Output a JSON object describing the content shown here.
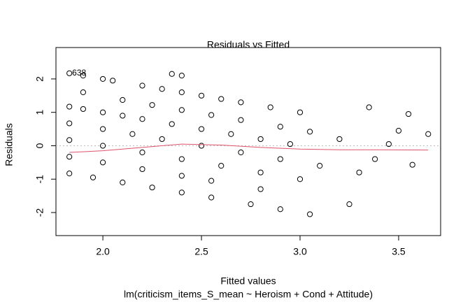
{
  "chart_data": {
    "type": "scatter",
    "title": "Residuals vs Fitted",
    "xlabel": "Fitted values",
    "subtitle": "lm(criticism_items_S_mean ~ Heroism + Cond + Attitude)",
    "ylabel": "Residuals",
    "annotation": "638",
    "xlim": [
      1.762,
      3.713
    ],
    "ylim": [
      -2.69,
      2.94
    ],
    "xticks": [
      {
        "value": 2.0,
        "label": "2.0"
      },
      2.5,
      {
        "value": 3.0,
        "label": "3.0"
      },
      3.5
    ],
    "yticks": [
      -2,
      -1,
      0,
      1,
      2
    ],
    "reference_line": 0,
    "point_color": "#000000",
    "x": [
      1.83,
      1.9,
      2.0,
      2.05,
      2.2,
      2.3,
      2.4,
      2.5,
      2.6,
      2.7,
      2.85,
      1.83,
      1.9,
      2.0,
      2.1,
      2.2,
      2.35,
      2.5,
      2.65,
      2.8,
      2.95,
      1.9,
      2.1,
      2.25,
      2.4,
      2.55,
      2.7,
      2.9,
      3.05,
      1.83,
      2.0,
      2.15,
      2.3,
      2.5,
      2.7,
      2.9,
      3.1,
      3.3,
      1.83,
      2.0,
      2.2,
      2.4,
      2.6,
      2.8,
      3.0,
      1.83,
      2.0,
      2.2,
      2.4,
      2.55,
      2.8,
      1.83,
      1.95,
      2.1,
      2.25,
      2.4,
      2.55,
      2.75,
      2.9,
      3.05,
      3.35,
      3.55,
      3.65,
      3.5,
      3.38,
      3.57,
      3.25,
      3.45,
      3.2,
      3.0,
      2.35,
      2.4
    ],
    "y": [
      2.17,
      2.1,
      2.0,
      1.95,
      1.8,
      1.7,
      1.6,
      1.5,
      1.4,
      1.3,
      1.15,
      1.17,
      1.1,
      1.0,
      0.9,
      0.8,
      0.65,
      0.5,
      0.35,
      0.2,
      0.05,
      1.6,
      1.37,
      1.22,
      1.07,
      0.92,
      0.77,
      0.57,
      0.42,
      0.67,
      0.5,
      0.35,
      0.2,
      0.0,
      -0.2,
      -0.4,
      -0.6,
      -0.8,
      0.17,
      0.0,
      -0.2,
      -0.4,
      -0.6,
      -0.8,
      -1.0,
      -0.33,
      -0.5,
      -0.7,
      -0.9,
      -1.05,
      -1.3,
      -0.83,
      -0.95,
      -1.1,
      -1.25,
      -1.4,
      -1.55,
      -1.75,
      -1.9,
      -2.05,
      1.15,
      0.95,
      0.35,
      0.45,
      -0.4,
      -0.57,
      -1.75,
      0.05,
      0.2,
      1.0,
      2.15,
      2.1
    ],
    "smooth": {
      "color": "#df536b",
      "x": [
        1.83,
        2.0,
        2.2,
        2.4,
        2.6,
        2.8,
        3.0,
        3.2,
        3.4,
        3.65
      ],
      "y": [
        -0.2,
        -0.15,
        -0.05,
        0.05,
        0.02,
        -0.05,
        -0.1,
        -0.12,
        -0.12,
        -0.13
      ]
    }
  }
}
